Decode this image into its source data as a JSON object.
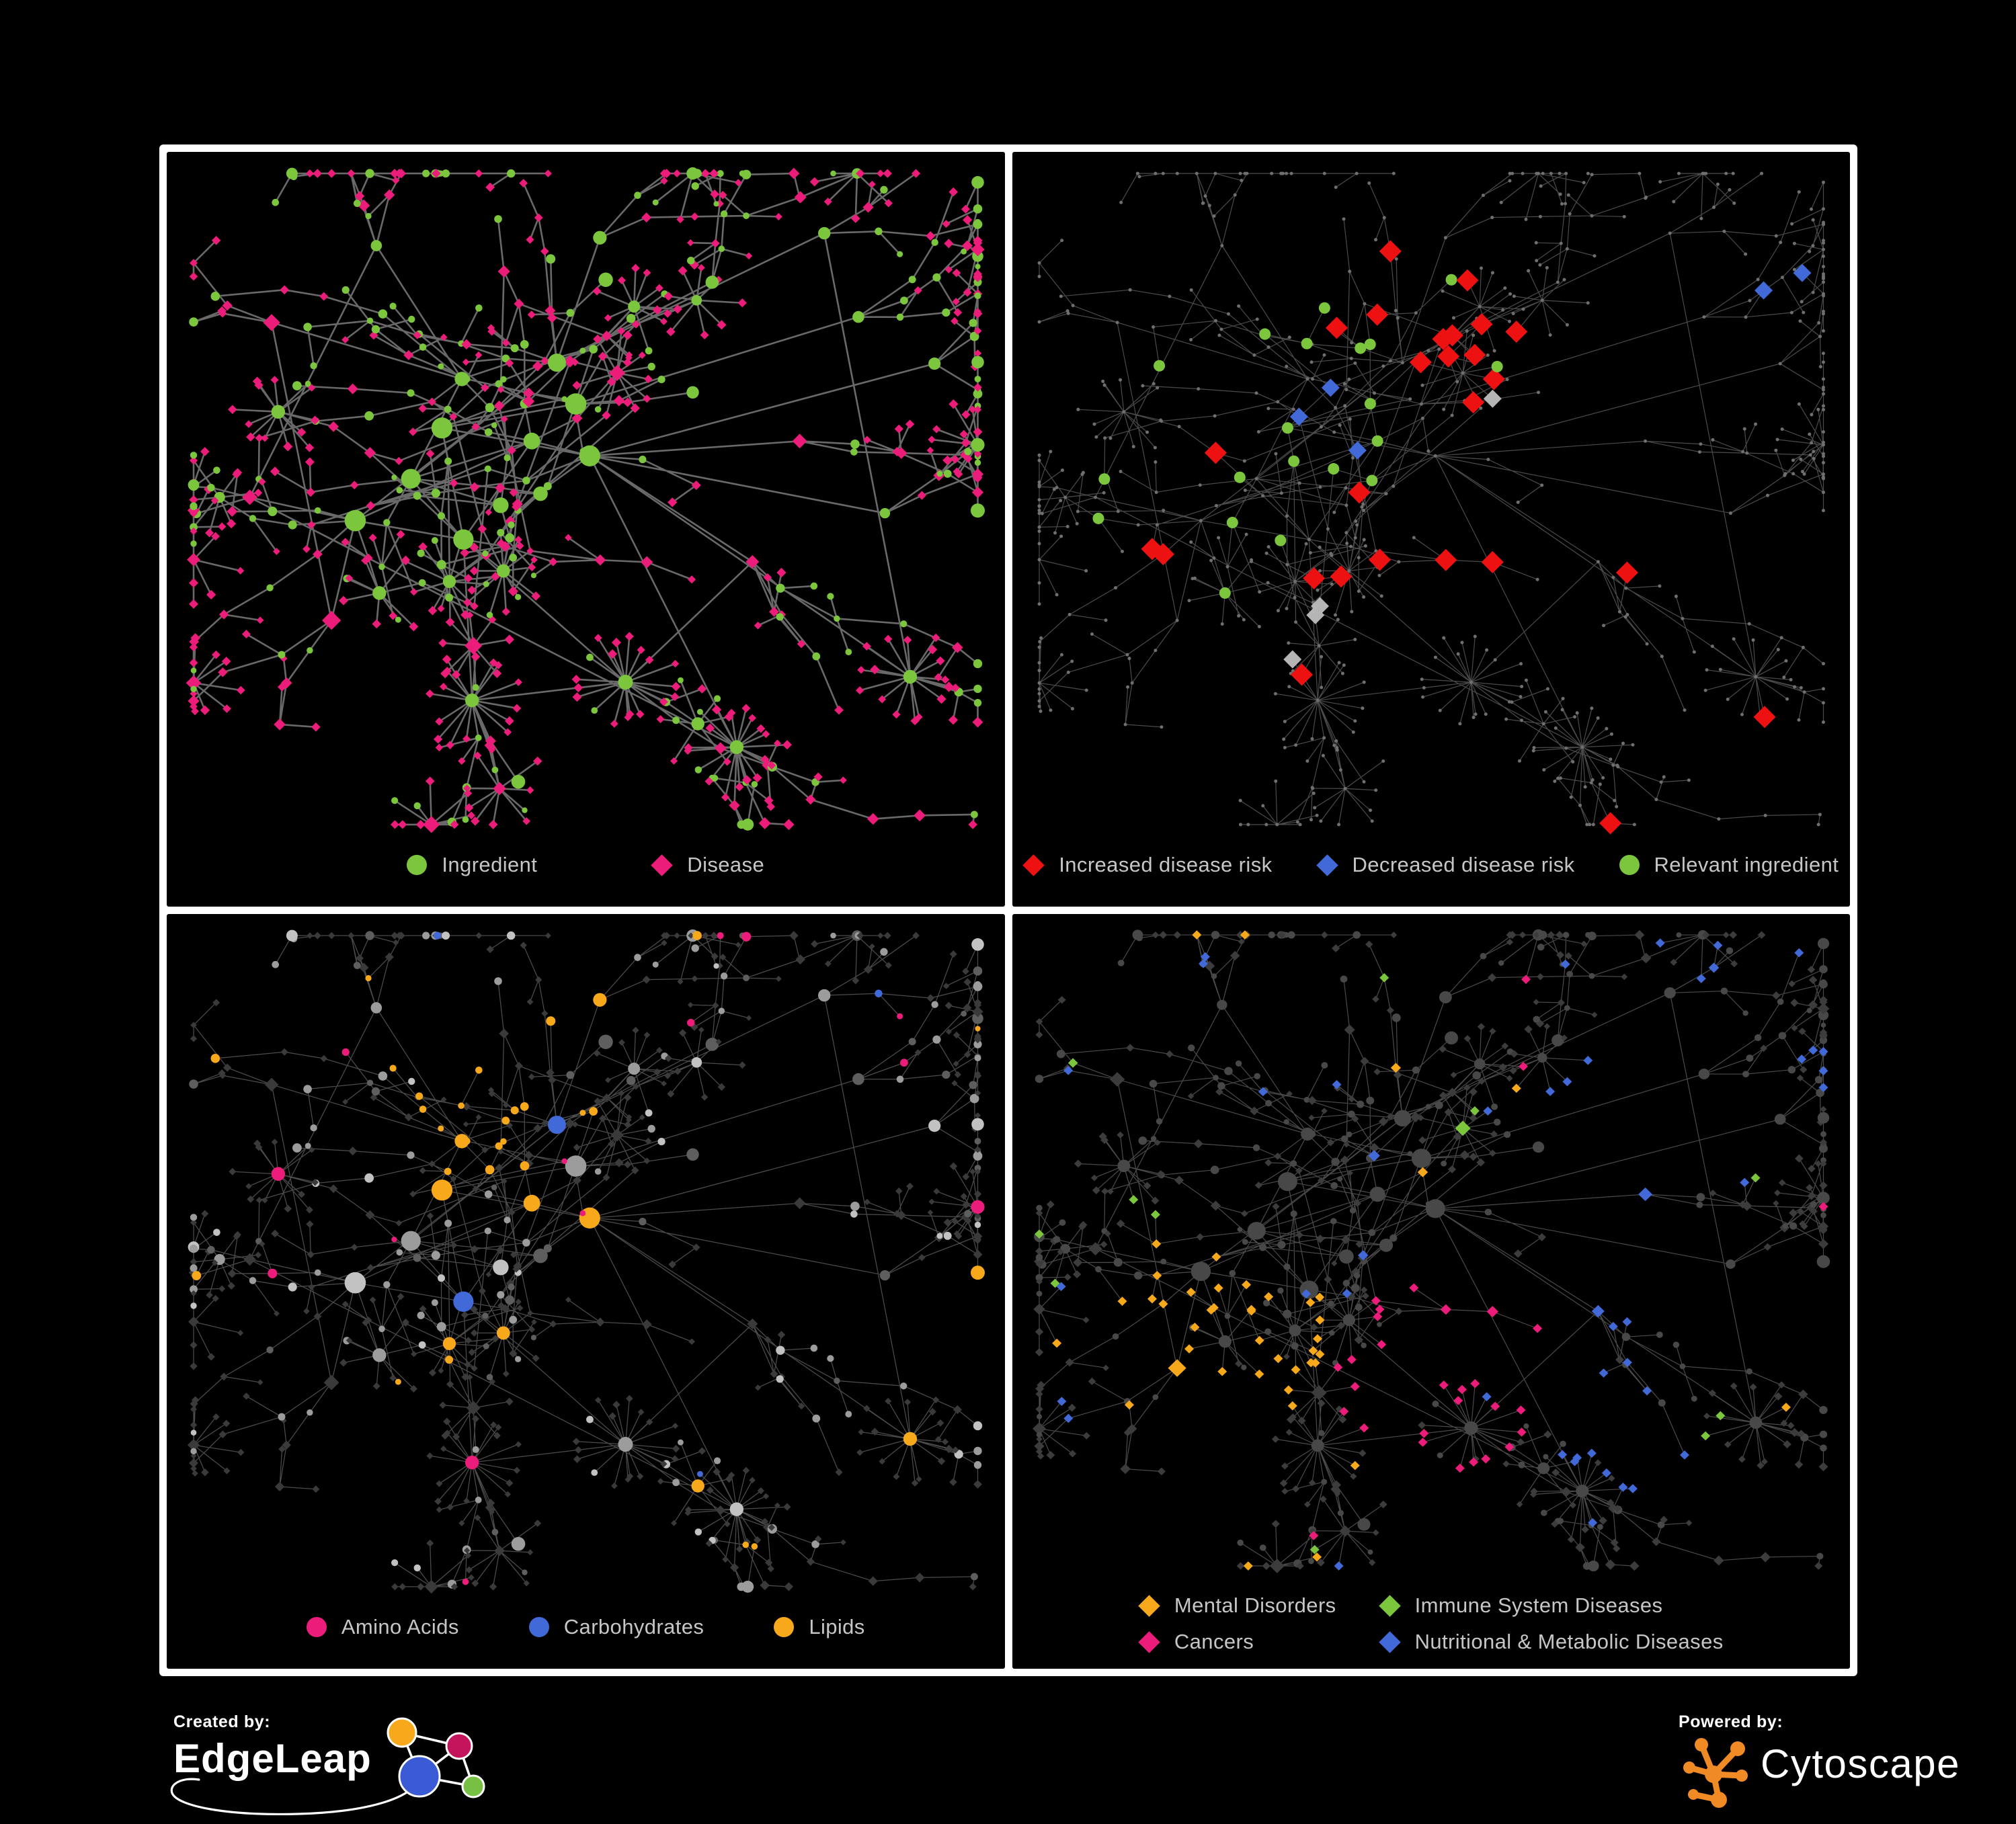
{
  "panels": [
    {
      "name": "ingredient-disease-network",
      "legend": [
        {
          "shape": "circle",
          "color": "#7cc63e",
          "label": "Ingredient"
        },
        {
          "shape": "diamond",
          "color": "#ec1c7b",
          "label": "Disease"
        }
      ]
    },
    {
      "name": "disease-risk-network",
      "legend": [
        {
          "shape": "diamond",
          "color": "#ed1111",
          "label": "Increased disease risk"
        },
        {
          "shape": "diamond",
          "color": "#4169d8",
          "label": "Decreased disease risk"
        },
        {
          "shape": "circle",
          "color": "#7cc63e",
          "label": "Relevant ingredient"
        }
      ]
    },
    {
      "name": "macronutrient-network",
      "legend": [
        {
          "shape": "circle",
          "color": "#ec1c7b",
          "label": "Amino Acids"
        },
        {
          "shape": "circle",
          "color": "#4169d8",
          "label": "Carbohydrates"
        },
        {
          "shape": "circle",
          "color": "#f7a81b",
          "label": "Lipids"
        }
      ]
    },
    {
      "name": "disease-category-network",
      "legend": [
        {
          "shape": "diamond",
          "color": "#f7a81b",
          "label": "Mental Disorders"
        },
        {
          "shape": "diamond",
          "color": "#7cc63e",
          "label": "Immune System Diseases"
        },
        {
          "shape": "diamond",
          "color": "#ec1c7b",
          "label": "Cancers"
        },
        {
          "shape": "diamond",
          "color": "#4169d8",
          "label": "Nutritional & Metabolic Diseases"
        }
      ]
    }
  ],
  "footer": {
    "created_by_label": "Created by:",
    "creator_name": "EdgeLeap",
    "powered_by_label": "Powered by:",
    "engine_name": "Cytoscape"
  },
  "colors": {
    "background": "#000000",
    "panel_border": "#ffffff",
    "legend_text": "#c6c6c6",
    "green": "#7cc63e",
    "pink": "#ec1c7b",
    "red": "#ed1111",
    "blue": "#4169d8",
    "orange": "#f7a81b",
    "edge_panel1": "#6f6f6f",
    "edge_dim": "#585858",
    "node_dim": "#6f6f6f",
    "diamond_gray": "#b5b5b5",
    "diamond_dark": "#3a3a3a",
    "circle_dark": "#484848",
    "circle_gray": "#9c9c9c",
    "circle_light": "#c2c2c2",
    "circle_dim": "#5e5e5e",
    "cytoscape_orange": "#f08a24",
    "edgeleap_orange": "#f7a81b",
    "edgeleap_crimson": "#c4145c",
    "edgeleap_blue": "#3b5bd6",
    "edgeleap_green": "#76c043"
  }
}
